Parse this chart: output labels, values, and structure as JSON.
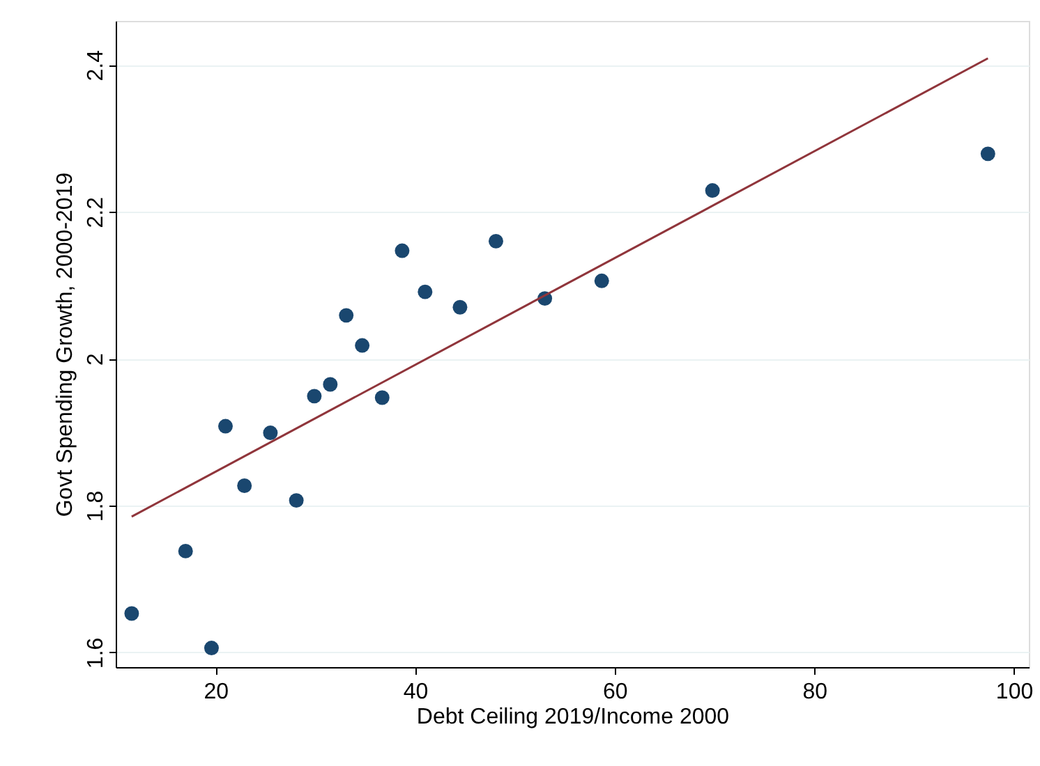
{
  "chart_data": {
    "type": "scatter",
    "xlabel": "Debt Ceiling 2019/Income 2000",
    "ylabel": "Govt Spending Growth, 2000-2019",
    "xlim": [
      10,
      101.5
    ],
    "ylim": [
      1.58,
      2.46
    ],
    "xticks": [
      20,
      40,
      60,
      80,
      100
    ],
    "yticks": [
      1.6,
      1.8,
      2,
      2.2,
      2.4
    ],
    "grid": "y",
    "series": [
      {
        "marker": "circle",
        "color": "#1a476f",
        "x": [
          11.6,
          17.0,
          19.6,
          21.0,
          22.9,
          25.5,
          28.1,
          29.9,
          31.5,
          33.1,
          34.7,
          36.7,
          38.7,
          41.0,
          44.5,
          48.1,
          53.0,
          58.7,
          69.8,
          97.4
        ],
        "values": [
          1.653,
          1.738,
          1.606,
          1.908,
          1.827,
          1.899,
          1.807,
          1.949,
          1.965,
          2.059,
          2.018,
          1.947,
          2.147,
          2.091,
          2.07,
          2.16,
          2.082,
          2.106,
          2.229,
          2.279
        ]
      },
      {
        "type": "line",
        "marker": "none",
        "line_style": "solid",
        "color": "#90353b",
        "x": [
          11.6,
          97.4
        ],
        "values": [
          1.785,
          2.409
        ]
      }
    ]
  }
}
